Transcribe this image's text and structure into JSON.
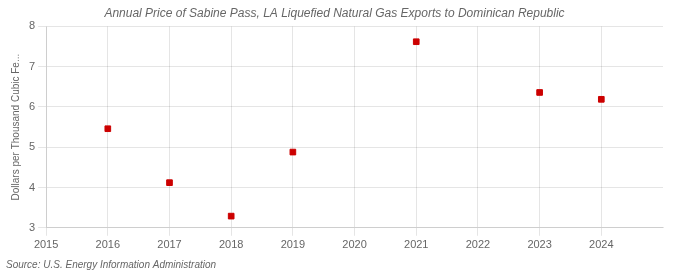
{
  "chart_data": {
    "type": "scatter",
    "title": "Annual Price of Sabine Pass, LA Liquefied Natural Gas Exports to Dominican Republic",
    "ylabel": "Dollars per Thousand Cubic Fe...",
    "annotations": [
      "Source: U.S. Energy Information Administration"
    ],
    "x": [
      2016,
      2017,
      2018,
      2019,
      2021,
      2023,
      2024
    ],
    "values": [
      5.46,
      4.12,
      3.29,
      4.88,
      7.62,
      6.36,
      6.19
    ],
    "xlim": [
      2015,
      2025
    ],
    "xticks": [
      2015,
      2016,
      2017,
      2018,
      2019,
      2020,
      2021,
      2022,
      2023,
      2024
    ],
    "ylim": [
      3,
      8
    ],
    "yticks": [
      3,
      4,
      5,
      6,
      7,
      8
    ],
    "color": "#cc0000",
    "marker": "square",
    "grid": true
  }
}
